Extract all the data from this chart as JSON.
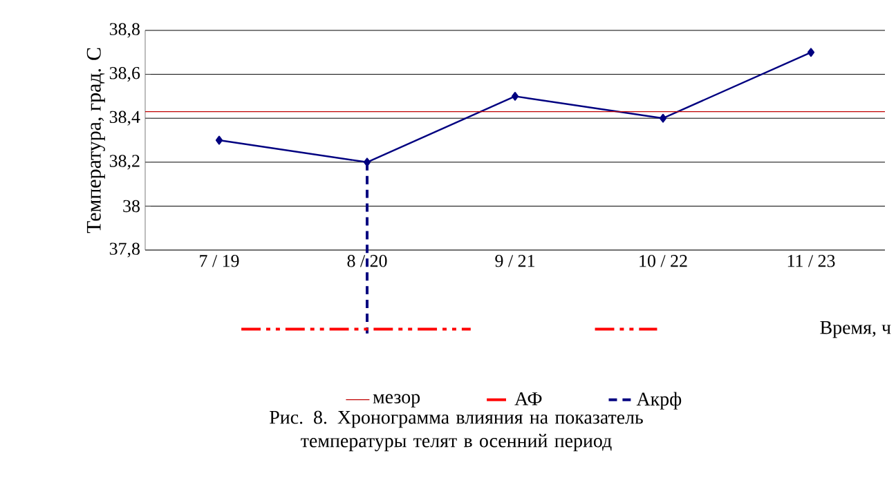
{
  "chart_data": {
    "type": "line",
    "title": "Рис. 8. Хронограмма влияния на показатель температуры телят в осенний период",
    "ylabel": "Температура, град. С",
    "xlabel": "Время, ч",
    "categories": [
      "7 / 19",
      "8 / 20",
      "9 / 21",
      "10 / 22",
      "11 / 23"
    ],
    "series": [
      {
        "color": "#000080",
        "values": [
          38.3,
          38.2,
          38.5,
          38.4,
          38.7
        ]
      }
    ],
    "ylim": [
      37.8,
      38.8
    ],
    "yticks": [
      {
        "value": 37.8,
        "label": "37,8"
      },
      {
        "value": 38,
        "label": "38"
      },
      {
        "value": 38.2,
        "label": "38,2"
      },
      {
        "value": 38.4,
        "label": "38,4"
      },
      {
        "value": 38.6,
        "label": "38,6"
      },
      {
        "value": 38.8,
        "label": "38,8"
      }
    ],
    "grid": "y",
    "marker": "diamond",
    "line_style": "solid",
    "legend": "bottom",
    "ref_lines": [
      {
        "axis": "y",
        "value": 38.43,
        "label": "мезор",
        "color": "#c00000"
      },
      {
        "axis": "x",
        "value": "8 / 20",
        "label": "Акрф",
        "color": "#000080",
        "line_style": "dashed"
      }
    ],
    "annotations": [
      "АФ"
    ]
  }
}
